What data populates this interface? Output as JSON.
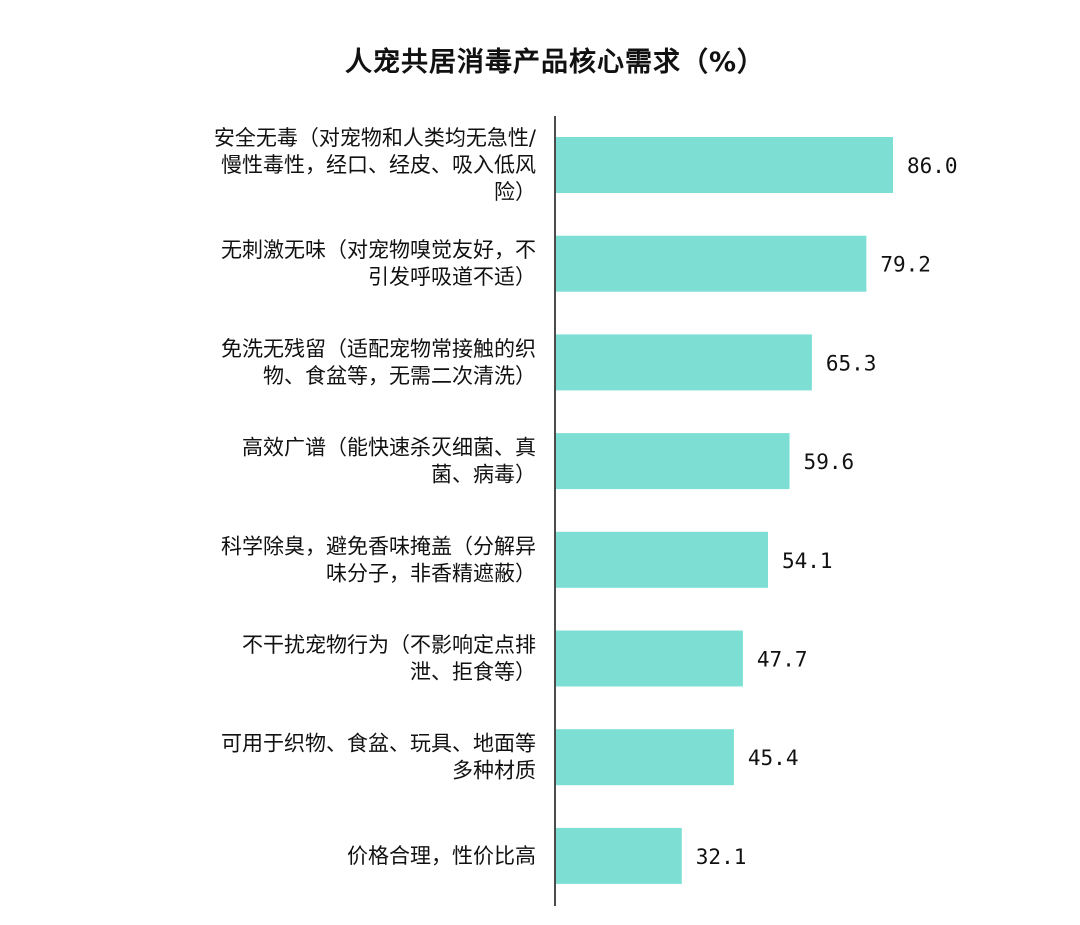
{
  "chart_data": {
    "type": "bar",
    "orientation": "horizontal",
    "title": "人宠共居消毒产品核心需求（%）",
    "categories": [
      [
        "安全无毒（对宠物和人类均无急性/",
        "慢性毒性，经口、经皮、吸入低风",
        "险）"
      ],
      [
        "无刺激无味（对宠物嗅觉友好，不",
        "引发呼吸道不适）"
      ],
      [
        "免洗无残留（适配宠物常接触的织",
        "物、食盆等，无需二次清洗）"
      ],
      [
        "高效广谱（能快速杀灭细菌、真",
        "菌、病毒）"
      ],
      [
        "科学除臭，避免香味掩盖（分解异",
        "味分子，非香精遮蔽）"
      ],
      [
        "不干扰宠物行为（不影响定点排",
        "泄、拒食等）"
      ],
      [
        "可用于织物、食盆、玩具、地面等",
        "多种材质"
      ],
      [
        "价格合理，性价比高"
      ]
    ],
    "values": [
      86.0,
      79.2,
      65.3,
      59.6,
      54.1,
      47.7,
      45.4,
      32.1
    ],
    "value_labels": [
      "86.0",
      "79.2",
      "65.3",
      "59.6",
      "54.1",
      "47.7",
      "45.4",
      "32.1"
    ],
    "xlim": [
      0,
      100
    ],
    "grid": false,
    "legend": "none",
    "colors": {
      "bar": "#7ddfd4",
      "axis": "#111111",
      "text": "#111111"
    }
  }
}
